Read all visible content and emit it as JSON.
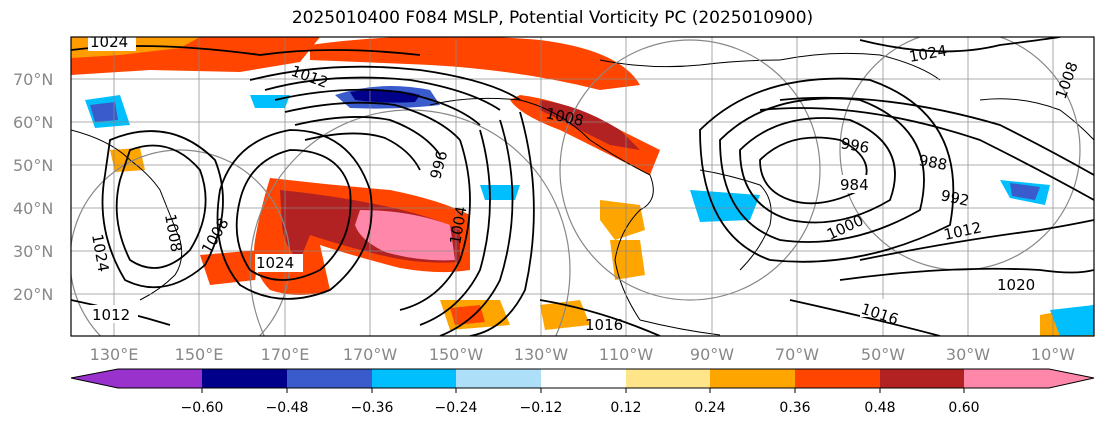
{
  "title": "2025010400 F084 MSLP, Potential Vorticity PC (2025010900)",
  "lat_labels": [
    "70°N",
    "60°N",
    "50°N",
    "40°N",
    "30°N",
    "20°N"
  ],
  "lon_labels": [
    "130°E",
    "150°E",
    "170°E",
    "170°W",
    "150°W",
    "130°W",
    "110°W",
    "90°W",
    "70°W",
    "50°W",
    "30°W",
    "10°W"
  ],
  "colorbar": {
    "tick_labels": [
      "−0.60",
      "−0.48",
      "−0.36",
      "−0.24",
      "−0.12",
      "0.12",
      "0.24",
      "0.36",
      "0.48",
      "0.60"
    ],
    "colors": [
      "#9932CC",
      "#00008B",
      "#3A5BCB",
      "#00BFFF",
      "#ADE0F8",
      "#FFFFFF",
      "#FFE58A",
      "#FFA500",
      "#FF4500",
      "#B22222",
      "#FF88AA"
    ]
  },
  "isobar_labels": [
    "1024",
    "1012",
    "1024",
    "1008",
    "1016",
    "996",
    "984",
    "988",
    "992",
    "1012",
    "1020",
    "1016",
    "1024",
    "1008",
    "996",
    "1000",
    "1024",
    "1004",
    "1008",
    "1012",
    "1008"
  ]
}
